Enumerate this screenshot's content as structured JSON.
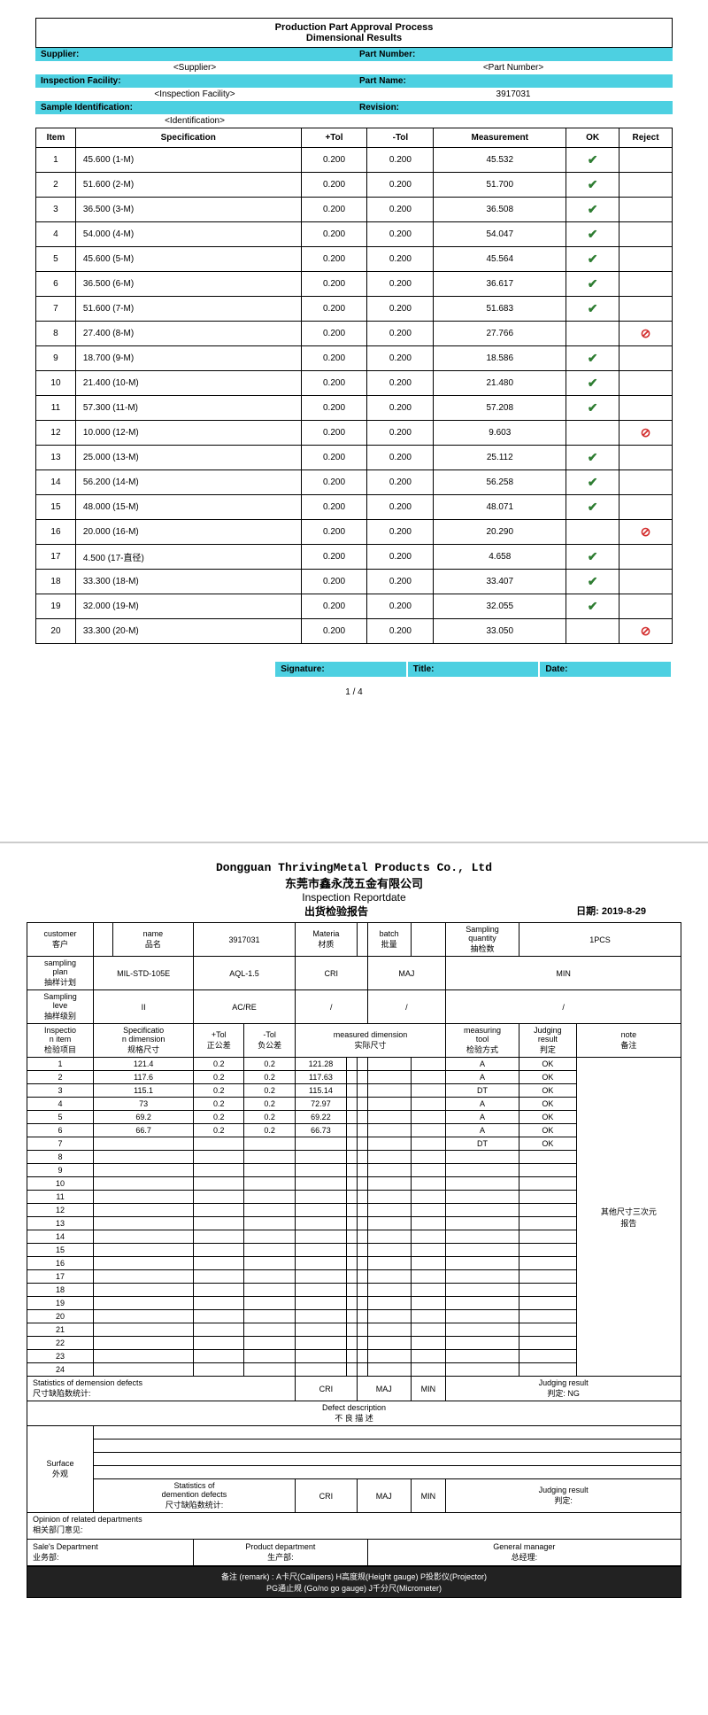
{
  "page1": {
    "title1": "Production Part Approval Process",
    "title2": "Dimensional Results",
    "headers": {
      "supplier_label": "Supplier:",
      "supplier_value": "<Supplier>",
      "partnum_label": "Part Number:",
      "partnum_value": "<Part Number>",
      "facility_label": "Inspection Facility:",
      "facility_value": "<Inspection Facility>",
      "partname_label": "Part Name:",
      "partname_value": "3917031",
      "sampleid_label": "Sample Identification:",
      "sampleid_value": "<Identification>",
      "revision_label": "Revision:"
    },
    "columns": [
      "Item",
      "Specification",
      "+Tol",
      "-Tol",
      "Measurement",
      "OK",
      "Reject"
    ],
    "rows": [
      {
        "item": "1",
        "spec": "45.600  (1-M)",
        "ptol": "0.200",
        "ntol": "0.200",
        "meas": "45.532",
        "ok": true,
        "rej": false
      },
      {
        "item": "2",
        "spec": "51.600  (2-M)",
        "ptol": "0.200",
        "ntol": "0.200",
        "meas": "51.700",
        "ok": true,
        "rej": false
      },
      {
        "item": "3",
        "spec": "36.500  (3-M)",
        "ptol": "0.200",
        "ntol": "0.200",
        "meas": "36.508",
        "ok": true,
        "rej": false
      },
      {
        "item": "4",
        "spec": "54.000  (4-M)",
        "ptol": "0.200",
        "ntol": "0.200",
        "meas": "54.047",
        "ok": true,
        "rej": false
      },
      {
        "item": "5",
        "spec": "45.600  (5-M)",
        "ptol": "0.200",
        "ntol": "0.200",
        "meas": "45.564",
        "ok": true,
        "rej": false
      },
      {
        "item": "6",
        "spec": "36.500  (6-M)",
        "ptol": "0.200",
        "ntol": "0.200",
        "meas": "36.617",
        "ok": true,
        "rej": false
      },
      {
        "item": "7",
        "spec": "51.600  (7-M)",
        "ptol": "0.200",
        "ntol": "0.200",
        "meas": "51.683",
        "ok": true,
        "rej": false
      },
      {
        "item": "8",
        "spec": "27.400  (8-M)",
        "ptol": "0.200",
        "ntol": "0.200",
        "meas": "27.766",
        "ok": false,
        "rej": true
      },
      {
        "item": "9",
        "spec": "18.700  (9-M)",
        "ptol": "0.200",
        "ntol": "0.200",
        "meas": "18.586",
        "ok": true,
        "rej": false
      },
      {
        "item": "10",
        "spec": "21.400  (10-M)",
        "ptol": "0.200",
        "ntol": "0.200",
        "meas": "21.480",
        "ok": true,
        "rej": false
      },
      {
        "item": "11",
        "spec": "57.300  (11-M)",
        "ptol": "0.200",
        "ntol": "0.200",
        "meas": "57.208",
        "ok": true,
        "rej": false
      },
      {
        "item": "12",
        "spec": "10.000  (12-M)",
        "ptol": "0.200",
        "ntol": "0.200",
        "meas": "9.603",
        "ok": false,
        "rej": true
      },
      {
        "item": "13",
        "spec": "25.000  (13-M)",
        "ptol": "0.200",
        "ntol": "0.200",
        "meas": "25.112",
        "ok": true,
        "rej": false
      },
      {
        "item": "14",
        "spec": "56.200  (14-M)",
        "ptol": "0.200",
        "ntol": "0.200",
        "meas": "56.258",
        "ok": true,
        "rej": false
      },
      {
        "item": "15",
        "spec": "48.000  (15-M)",
        "ptol": "0.200",
        "ntol": "0.200",
        "meas": "48.071",
        "ok": true,
        "rej": false
      },
      {
        "item": "16",
        "spec": "20.000  (16-M)",
        "ptol": "0.200",
        "ntol": "0.200",
        "meas": "20.290",
        "ok": false,
        "rej": true
      },
      {
        "item": "17",
        "spec": "4.500 (17-直径)",
        "ptol": "0.200",
        "ntol": "0.200",
        "meas": "4.658",
        "ok": true,
        "rej": false
      },
      {
        "item": "18",
        "spec": "33.300  (18-M)",
        "ptol": "0.200",
        "ntol": "0.200",
        "meas": "33.407",
        "ok": true,
        "rej": false
      },
      {
        "item": "19",
        "spec": "32.000  (19-M)",
        "ptol": "0.200",
        "ntol": "0.200",
        "meas": "32.055",
        "ok": true,
        "rej": false
      },
      {
        "item": "20",
        "spec": "33.300  (20-M)",
        "ptol": "0.200",
        "ntol": "0.200",
        "meas": "33.050",
        "ok": false,
        "rej": true
      }
    ],
    "sig": {
      "signature": "Signature:",
      "title": "Title:",
      "date": "Date:"
    },
    "pagenum": "1  /  4"
  },
  "page2": {
    "company_en": "Dongguan ThrivingMetal Products Co., Ltd",
    "company_cn": "东莞市鑫永茂五金有限公司",
    "report_en": "Inspection Reportdate",
    "report_cn": "出货检验报告",
    "date_label": "日期:",
    "date_value": "2019-8-29",
    "hdr": {
      "customer": "customer\n客户",
      "name": "name\n品名",
      "name_val": "3917031",
      "material": "Materia\n材质",
      "batch": "batch\n批量",
      "sampqty": "Sampling\nquantity\n抽检数",
      "sampqty_val": "1PCS",
      "sampplan": "sampling\nplan\n抽样计划",
      "sampplan_val": "MIL-STD-105E",
      "aql": "AQL-1.5",
      "cri": "CRI",
      "maj": "MAJ",
      "min": "MIN",
      "samplev": "Sampling\nleve\n抽样级别",
      "samplev_val": "II",
      "acre": "AC/RE",
      "slash": "/",
      "inspitem": "Inspectio\nn item\n检验项目",
      "specdim": "Specificatio\nn dimension\n规格尺寸",
      "ptol": "+Tol\n正公差",
      "ntol": "-Tol\n负公差",
      "measdim": "measured dimension\n实际尺寸",
      "meastool": "measuring\ntool\n检验方式",
      "judge": "Judging\nresult\n判定",
      "note": "note\n备注"
    },
    "data": [
      {
        "i": "1",
        "spec": "121.4",
        "pt": "0.2",
        "nt": "0.2",
        "m1": "121.28",
        "tool": "A",
        "res": "OK"
      },
      {
        "i": "2",
        "spec": "117.6",
        "pt": "0.2",
        "nt": "0.2",
        "m1": "117.63",
        "tool": "A",
        "res": "OK"
      },
      {
        "i": "3",
        "spec": "115.1",
        "pt": "0.2",
        "nt": "0.2",
        "m1": "115.14",
        "tool": "DT",
        "res": "OK"
      },
      {
        "i": "4",
        "spec": "73",
        "pt": "0.2",
        "nt": "0.2",
        "m1": "72.97",
        "tool": "A",
        "res": "OK"
      },
      {
        "i": "5",
        "spec": "69.2",
        "pt": "0.2",
        "nt": "0.2",
        "m1": "69.22",
        "tool": "A",
        "res": "OK"
      },
      {
        "i": "6",
        "spec": "66.7",
        "pt": "0.2",
        "nt": "0.2",
        "m1": "66.73",
        "tool": "A",
        "res": "OK"
      },
      {
        "i": "7",
        "spec": "",
        "pt": "",
        "nt": "",
        "m1": "",
        "tool": "DT",
        "res": "OK"
      }
    ],
    "empty_rows": [
      "8",
      "9",
      "10",
      "11",
      "12",
      "13",
      "14",
      "15",
      "16",
      "17",
      "18",
      "19",
      "20",
      "21",
      "22",
      "23",
      "24"
    ],
    "note_side": "其他尺寸三次元\n报告",
    "stats1": "Statistics of demension defects\n尺寸缺陷数统计:",
    "defect_desc": "Defect description\n不 良 描 述",
    "surface": "Surface\n外观",
    "stats2": "Statistics of\ndemention defects\n尺寸缺陷数统计:",
    "judging_result": "Judging result\n判定:",
    "ng": "NG",
    "opinion": "Opinion of related departments\n相关部门意见:",
    "sales": "Sale's Department\n业务部:",
    "product": "Product department\n生产部:",
    "manager": "General manager\n总经理:",
    "remarks": "备注 (remark) : A卡尺(Callipers)  H高度规(Height gauge)  P投影仪(Projector)\nPG通止规 (Go/no go gauge)  J千分尺(Micrometer)"
  },
  "colors": {
    "header_bg": "#4dd0e1",
    "ok_color": "#2e7d32",
    "reject_color": "#d32f2f",
    "border": "#000000"
  }
}
